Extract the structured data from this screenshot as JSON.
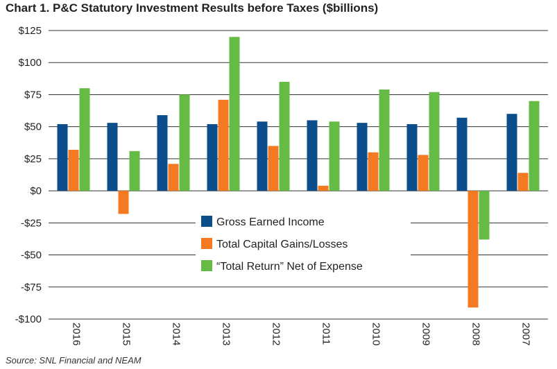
{
  "title": "Chart 1. P&C Statutory Investment Results before Taxes ($billions)",
  "source": "Source: SNL Financial and NEAM",
  "colors": {
    "gross": "#0c4e8c",
    "capital": "#f47a22",
    "total": "#66bb44",
    "grid": "#333333"
  },
  "chart_data": {
    "type": "bar",
    "title": "Chart 1. P&C Statutory Investment Results before Taxes ($billions)",
    "xlabel": "",
    "ylabel": "",
    "ylim": [
      -100,
      125
    ],
    "yticks": [
      125,
      100,
      75,
      50,
      25,
      0,
      -25,
      -50,
      -75,
      -100
    ],
    "ytick_labels": [
      "$125",
      "$100",
      "$75",
      "$50",
      "$25",
      "$0",
      "-$25",
      "-$50",
      "-$75",
      "-$100"
    ],
    "categories": [
      "2016",
      "2015",
      "2014",
      "2013",
      "2012",
      "2011",
      "2010",
      "2009",
      "2008",
      "2007"
    ],
    "series": [
      {
        "name": "Gross Earned Income",
        "values": [
          52,
          53,
          59,
          52,
          54,
          55,
          53,
          52,
          57,
          60
        ]
      },
      {
        "name": "Total Capital Gains/Losses",
        "values": [
          32,
          -18,
          21,
          71,
          35,
          4,
          30,
          28,
          -91,
          14
        ]
      },
      {
        "name": "“Total Return” Net of Expense",
        "values": [
          80,
          31,
          75,
          120,
          85,
          54,
          79,
          77,
          -38,
          70
        ]
      }
    ],
    "legend_position": "center",
    "grid": "horizontal"
  }
}
